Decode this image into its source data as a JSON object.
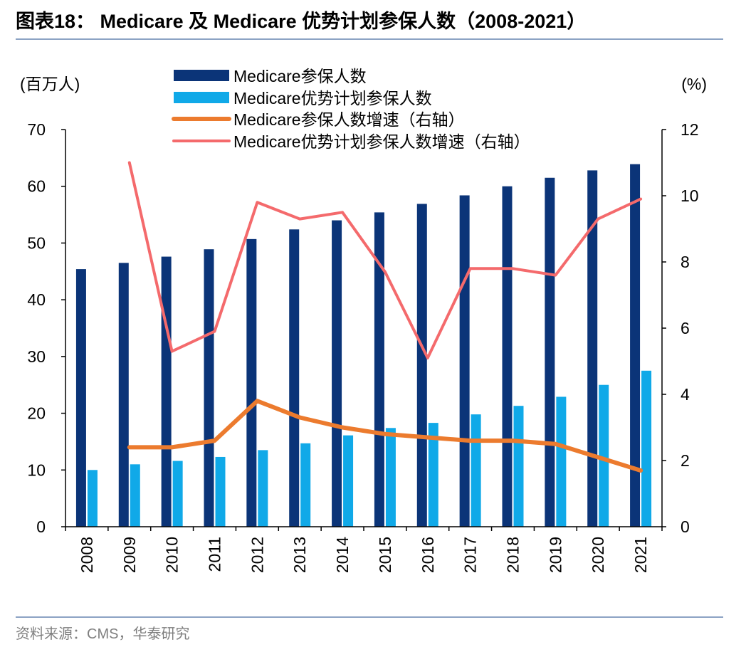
{
  "figure_title": "图表18： Medicare 及 Medicare 优势计划参保人数（2008-2021）",
  "source": "资料来源：CMS，华泰研究",
  "colors": {
    "medicare_bar": "#0b3478",
    "advantage_bar": "#10a9e8",
    "medicare_growth_line": "#ec7b2e",
    "advantage_growth_line": "#f46a6c",
    "rule": "#8ca3c4"
  },
  "chart_data": {
    "type": "bar",
    "categories": [
      "2008",
      "2009",
      "2010",
      "2011",
      "2012",
      "2013",
      "2014",
      "2015",
      "2016",
      "2017",
      "2018",
      "2019",
      "2020",
      "2021"
    ],
    "left_axis": {
      "label": "(百万人)",
      "ylim": [
        0,
        70
      ],
      "ticks": [
        "0",
        "10",
        "20",
        "30",
        "40",
        "50",
        "60",
        "70"
      ]
    },
    "right_axis": {
      "label": "(%)",
      "ylim": [
        0,
        12
      ],
      "ticks": [
        "0",
        "2",
        "4",
        "6",
        "8",
        "10",
        "12"
      ]
    },
    "grid": false,
    "legend_position": "top",
    "series": [
      {
        "name": "Medicare参保人数",
        "kind": "bar",
        "axis": "left",
        "values": [
          45.4,
          46.5,
          47.6,
          48.9,
          50.7,
          52.4,
          54.0,
          55.4,
          56.9,
          58.4,
          60.0,
          61.5,
          62.8,
          63.9
        ]
      },
      {
        "name": "Medicare优势计划参保人数",
        "kind": "bar",
        "axis": "left",
        "values": [
          10.0,
          11.0,
          11.6,
          12.3,
          13.5,
          14.7,
          16.1,
          17.4,
          18.3,
          19.8,
          21.3,
          22.9,
          25.0,
          27.5
        ]
      },
      {
        "name": "Medicare参保人数增速（右轴）",
        "kind": "line",
        "axis": "right",
        "values": [
          null,
          2.4,
          2.4,
          2.6,
          3.8,
          3.3,
          3.0,
          2.8,
          2.7,
          2.6,
          2.6,
          2.5,
          2.1,
          1.7
        ]
      },
      {
        "name": "Medicare优势计划参保人数增速（右轴）",
        "kind": "line",
        "axis": "right",
        "values": [
          null,
          11.0,
          5.3,
          5.9,
          9.8,
          9.3,
          9.5,
          7.7,
          5.1,
          7.8,
          7.8,
          7.6,
          9.3,
          9.9
        ]
      }
    ]
  }
}
